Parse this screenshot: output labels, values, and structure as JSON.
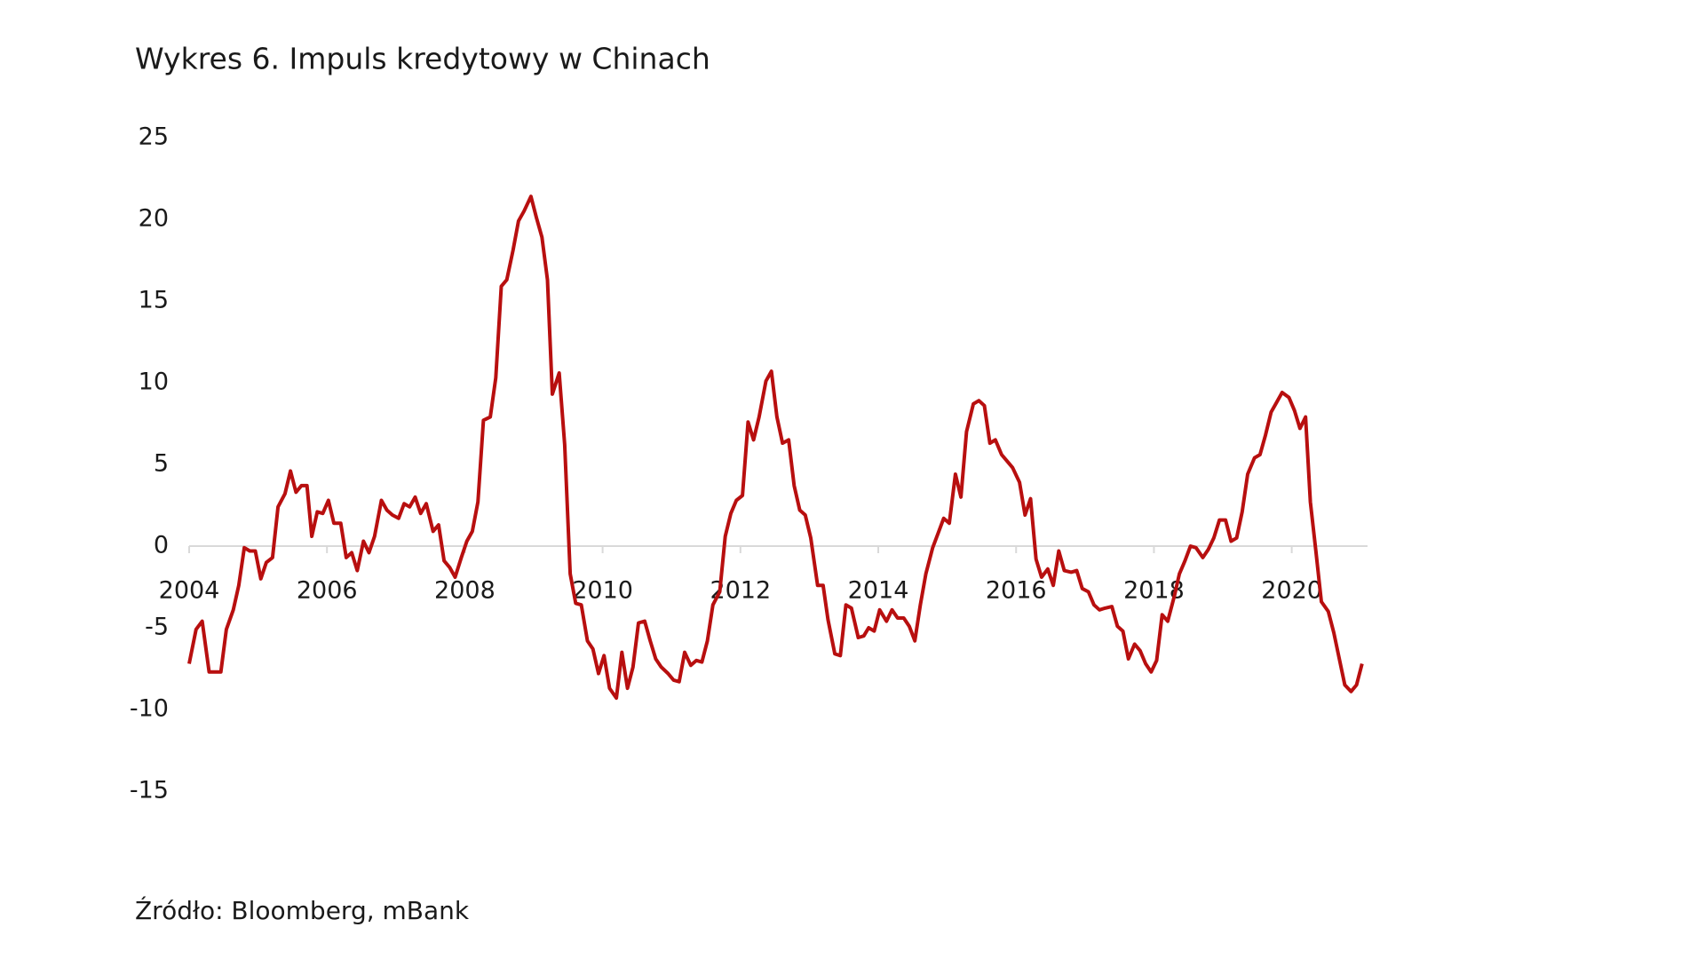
{
  "chart_data": {
    "type": "line",
    "title": "Wykres 6. Impuls kredytowy w Chinach",
    "source": "Źródło: Bloomberg, mBank",
    "xlim": [
      2004,
      2021.1
    ],
    "xticks": [
      2004,
      2006,
      2008,
      2010,
      2012,
      2014,
      2016,
      2018,
      2020
    ],
    "ylim": [
      -15,
      25
    ],
    "yticks": [
      -15,
      -10,
      -5,
      0,
      5,
      10,
      15,
      20,
      25
    ],
    "grid": false,
    "series": [
      {
        "name": "Impuls kredytowy",
        "color": "#b80f0f",
        "x": [
          2004.0,
          2004.1,
          2004.19,
          2004.29,
          2004.46,
          2004.54,
          2004.64,
          2004.72,
          2004.8,
          2004.88,
          2004.96,
          2005.04,
          2005.12,
          2005.21,
          2005.29,
          2005.39,
          2005.47,
          2005.55,
          2005.63,
          2005.71,
          2005.78,
          2005.86,
          2005.94,
          2006.02,
          2006.1,
          2006.2,
          2006.28,
          2006.36,
          2006.44,
          2006.53,
          2006.61,
          2006.69,
          2006.79,
          2006.87,
          2006.95,
          2007.04,
          2007.12,
          2007.2,
          2007.28,
          2007.36,
          2007.44,
          2007.54,
          2007.62,
          2007.7,
          2007.78,
          2007.86,
          2007.95,
          2008.03,
          2008.11,
          2008.19,
          2008.27,
          2008.37,
          2008.45,
          2008.53,
          2008.61,
          2008.7,
          2008.78,
          2008.86,
          2008.96,
          2009.04,
          2009.12,
          2009.2,
          2009.27,
          2009.37,
          2009.45,
          2009.53,
          2009.61,
          2009.69,
          2009.78,
          2009.86,
          2009.94,
          2010.02,
          2010.1,
          2010.2,
          2010.28,
          2010.36,
          2010.44,
          2010.52,
          2010.61,
          2010.69,
          2010.77,
          2010.85,
          2010.95,
          2011.03,
          2011.11,
          2011.19,
          2011.28,
          2011.36,
          2011.44,
          2011.52,
          2011.6,
          2011.7,
          2011.78,
          2011.86,
          2011.94,
          2012.03,
          2012.11,
          2012.19,
          2012.27,
          2012.37,
          2012.45,
          2012.53,
          2012.61,
          2012.7,
          2012.78,
          2012.86,
          2012.94,
          2013.02,
          2013.12,
          2013.2,
          2013.27,
          2013.37,
          2013.45,
          2013.53,
          2013.61,
          2013.71,
          2013.79,
          2013.86,
          2013.94,
          2014.02,
          2014.12,
          2014.2,
          2014.28,
          2014.37,
          2014.45,
          2014.53,
          2014.61,
          2014.69,
          2014.79,
          2014.87,
          2014.95,
          2015.03,
          2015.12,
          2015.2,
          2015.28,
          2015.38,
          2015.46,
          2015.54,
          2015.62,
          2015.7,
          2015.79,
          2015.87,
          2015.95,
          2016.05,
          2016.13,
          2016.21,
          2016.29,
          2016.37,
          2016.46,
          2016.54,
          2016.62,
          2016.7,
          2016.8,
          2016.88,
          2016.96,
          2017.05,
          2017.13,
          2017.21,
          2017.29,
          2017.39,
          2017.47,
          2017.55,
          2017.63,
          2017.72,
          2017.8,
          2017.88,
          2017.96,
          2018.04,
          2018.12,
          2018.2,
          2018.3,
          2018.37,
          2018.45,
          2018.53,
          2018.61,
          2018.71,
          2018.79,
          2018.87,
          2018.95,
          2019.04,
          2019.12,
          2019.2,
          2019.28,
          2019.36,
          2019.46,
          2019.54,
          2019.62,
          2019.7,
          2019.78,
          2019.86,
          2019.96,
          2020.04,
          2020.12,
          2020.2,
          2020.27,
          2020.35,
          2020.43,
          2020.53,
          2020.61,
          2020.69,
          2020.77,
          2020.86,
          2020.94,
          2021.02
        ],
        "values": [
          -7.2,
          -5.1,
          -4.6,
          -7.7,
          -7.7,
          -5.1,
          -3.9,
          -2.4,
          -0.1,
          -0.3,
          -0.3,
          -2.0,
          -1.0,
          -0.7,
          2.4,
          3.2,
          4.6,
          3.3,
          3.7,
          3.7,
          0.6,
          2.1,
          2.0,
          2.8,
          1.4,
          1.4,
          -0.7,
          -0.4,
          -1.5,
          0.3,
          -0.4,
          0.6,
          2.8,
          2.2,
          1.9,
          1.7,
          2.6,
          2.4,
          3.0,
          2.0,
          2.6,
          0.9,
          1.3,
          -0.9,
          -1.3,
          -1.9,
          -0.7,
          0.3,
          0.9,
          2.7,
          7.7,
          7.9,
          10.3,
          15.9,
          16.3,
          18.1,
          19.9,
          20.5,
          21.4,
          20.1,
          18.9,
          16.3,
          9.3,
          10.6,
          6.2,
          -1.7,
          -3.5,
          -3.6,
          -5.8,
          -6.3,
          -7.8,
          -6.7,
          -8.7,
          -9.3,
          -6.5,
          -8.7,
          -7.4,
          -4.7,
          -4.6,
          -5.8,
          -6.9,
          -7.4,
          -7.8,
          -8.2,
          -8.3,
          -6.5,
          -7.3,
          -7.0,
          -7.1,
          -5.8,
          -3.6,
          -2.8,
          0.6,
          2.0,
          2.8,
          3.1,
          7.6,
          6.5,
          7.9,
          10.1,
          10.7,
          7.9,
          6.3,
          6.5,
          3.7,
          2.2,
          1.9,
          0.5,
          -2.4,
          -2.4,
          -4.5,
          -6.6,
          -6.7,
          -3.6,
          -3.8,
          -5.6,
          -5.5,
          -5.0,
          -5.2,
          -3.9,
          -4.6,
          -3.9,
          -4.4,
          -4.4,
          -4.9,
          -5.8,
          -3.6,
          -1.7,
          -0.1,
          0.8,
          1.7,
          1.4,
          4.4,
          3.0,
          7.0,
          8.7,
          8.9,
          8.6,
          6.3,
          6.5,
          5.6,
          5.2,
          4.8,
          3.9,
          1.9,
          2.9,
          -0.8,
          -1.9,
          -1.4,
          -2.4,
          -0.3,
          -1.5,
          -1.6,
          -1.5,
          -2.6,
          -2.8,
          -3.6,
          -3.9,
          -3.8,
          -3.7,
          -4.9,
          -5.2,
          -6.9,
          -6.0,
          -6.4,
          -7.2,
          -7.7,
          -7.0,
          -4.2,
          -4.6,
          -3.0,
          -1.7,
          -0.9,
          0.0,
          -0.1,
          -0.7,
          -0.2,
          0.5,
          1.6,
          1.6,
          0.3,
          0.5,
          2.1,
          4.4,
          5.4,
          5.6,
          6.8,
          8.2,
          8.8,
          9.4,
          9.1,
          8.3,
          7.2,
          7.9,
          2.7,
          -0.3,
          -3.4,
          -4.0,
          -5.3,
          -6.9,
          -8.5,
          -8.9,
          -8.5,
          -7.2
        ]
      }
    ]
  }
}
